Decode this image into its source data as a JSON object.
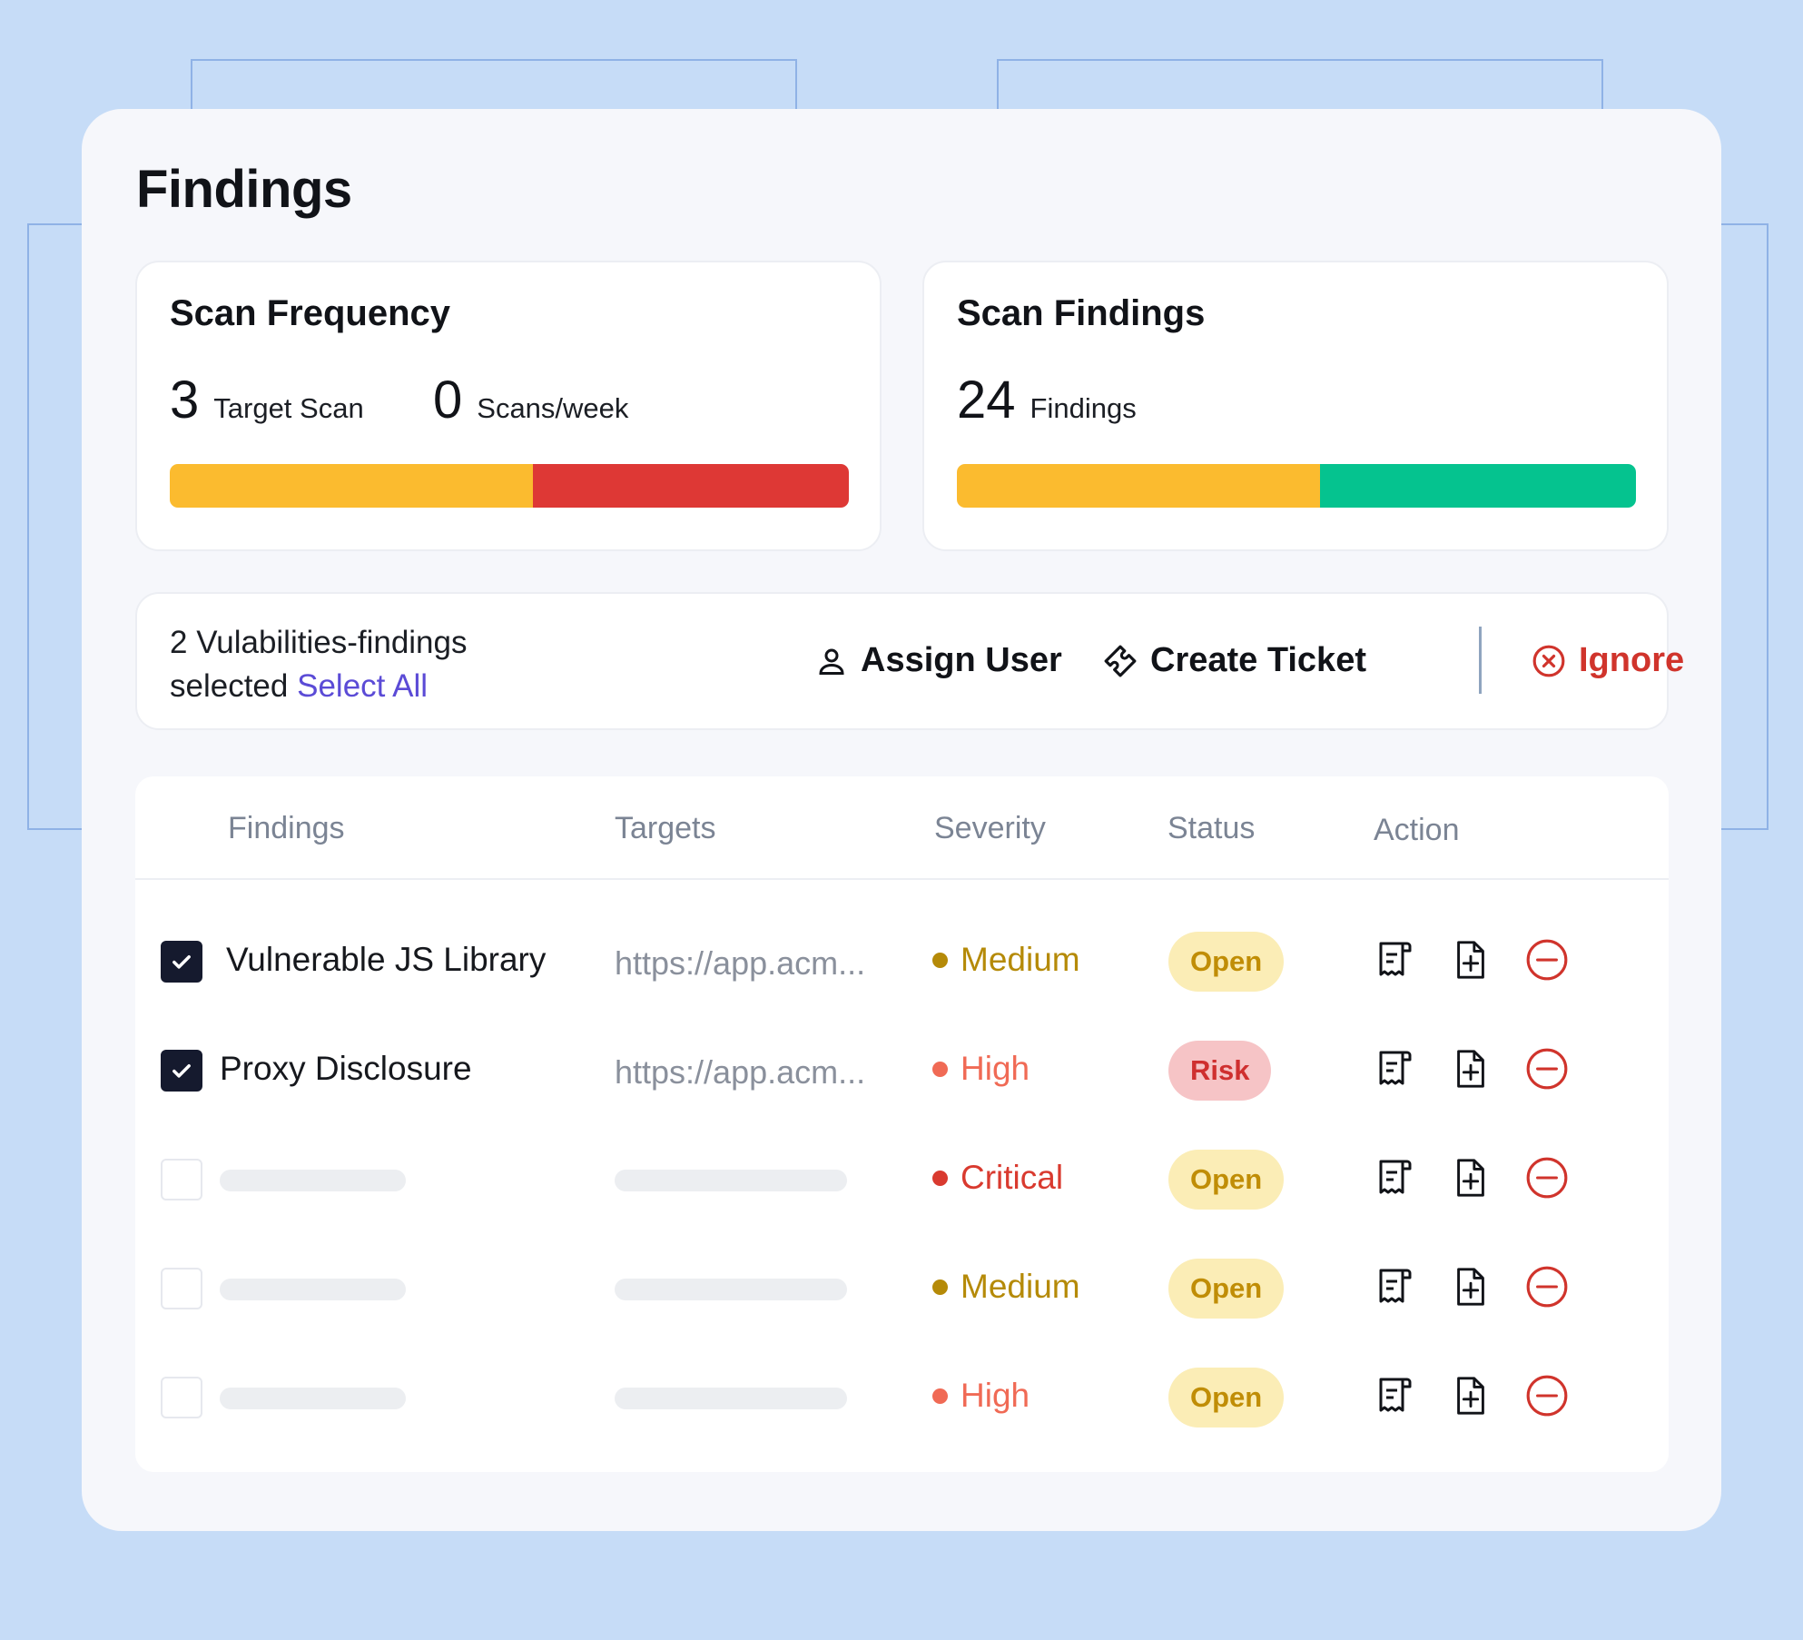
{
  "page": {
    "title": "Findings"
  },
  "scan_frequency": {
    "title": "Scan Frequency",
    "stats": [
      {
        "value": "3",
        "label": "Target Scan"
      },
      {
        "value": "0",
        "label": "Scans/week"
      }
    ],
    "bar": [
      {
        "fraction": 0.535,
        "color": "#fbbb2f"
      },
      {
        "fraction": 0.465,
        "color": "#de3835"
      }
    ]
  },
  "scan_findings": {
    "title": "Scan Findings",
    "stats": [
      {
        "value": "24",
        "label": "Findings"
      }
    ],
    "bar": [
      {
        "fraction": 0.535,
        "color": "#fbbb2f"
      },
      {
        "fraction": 0.465,
        "color": "#05c38f"
      }
    ]
  },
  "selection": {
    "text_line1": "2 Vulabilities-findings",
    "text_line2": "selected",
    "select_all": "Select All",
    "assign_user": "Assign User",
    "create_ticket": "Create Ticket",
    "ignore": "Ignore"
  },
  "table": {
    "headers": {
      "findings": "Findings",
      "targets": "Targets",
      "severity": "Severity",
      "status": "Status",
      "action": "Action"
    },
    "rows": [
      {
        "checked": true,
        "finding": "Vulnerable JS Library",
        "target": "https://app.acm...",
        "severity": "Medium",
        "status": "Open"
      },
      {
        "checked": true,
        "finding": "Proxy Disclosure",
        "target": "https://app.acm...",
        "severity": "High",
        "status": "Risk"
      },
      {
        "checked": false,
        "finding": "",
        "target": "",
        "severity": "Critical",
        "status": "Open"
      },
      {
        "checked": false,
        "finding": "",
        "target": "",
        "severity": "Medium",
        "status": "Open"
      },
      {
        "checked": false,
        "finding": "",
        "target": "",
        "severity": "High",
        "status": "Open"
      }
    ]
  },
  "colors": {
    "medium": "#b58a08",
    "high": "#f06a55",
    "critical": "#d93a2f",
    "accent": "#5b4bd6",
    "danger": "#d0342c"
  }
}
